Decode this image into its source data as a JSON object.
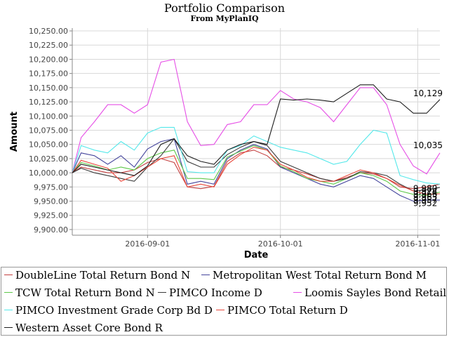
{
  "chart_data": {
    "type": "line",
    "title": "Portfolio Comparison",
    "subtitle": "From MyPlanIQ",
    "xlabel": "Date",
    "ylabel": "Amount",
    "ylim": [
      9890,
      10255
    ],
    "y_ticks": [
      "9,900.00",
      "9,925.00",
      "9,950.00",
      "9,975.00",
      "10,000.00",
      "10,025.00",
      "10,050.00",
      "10,075.00",
      "10,100.00",
      "10,125.00",
      "10,150.00",
      "10,175.00",
      "10,200.00",
      "10,225.00",
      "10,250.00"
    ],
    "y_tick_values": [
      9900,
      9925,
      9950,
      9975,
      10000,
      10025,
      10050,
      10075,
      10100,
      10125,
      10150,
      10175,
      10200,
      10225,
      10250
    ],
    "x_ticks": [
      "2016-09-01",
      "2016-10-01",
      "2016-11-01"
    ],
    "x_tick_positions": [
      17,
      47,
      78
    ],
    "x_range": [
      0,
      83
    ],
    "grid": true,
    "legend_position": "bottom",
    "end_labels": [
      {
        "text": "10,129",
        "value": 10129
      },
      {
        "text": "10,035",
        "value": 10035
      },
      {
        "text": "9,980",
        "value": 9980
      },
      {
        "text": "9,974",
        "value": 9974
      },
      {
        "text": "9,966",
        "value": 9966
      },
      {
        "text": "9,963",
        "value": 9963
      },
      {
        "text": "9,957",
        "value": 9957
      },
      {
        "text": "9,952",
        "value": 9952
      }
    ],
    "series": [
      {
        "name": "DoubleLine Total Return Bond N",
        "color": "#c33f3f",
        "x": [
          0,
          2,
          5,
          8,
          11,
          14,
          17,
          20,
          23,
          26,
          29,
          32,
          35,
          38,
          41,
          44,
          47,
          50,
          53,
          56,
          59,
          62,
          65,
          68,
          71,
          74,
          77,
          80,
          83
        ],
        "y": [
          10000,
          10010,
          10005,
          10000,
          10000,
          10005,
          10018,
          10025,
          10018,
          9975,
          9972,
          9976,
          10020,
          10035,
          10040,
          10030,
          10010,
          10005,
          9998,
          9990,
          9985,
          9992,
          10000,
          9998,
          9990,
          9975,
          9972,
          9975,
          9980
        ]
      },
      {
        "name": "Metropolitan West Total Return Bond M",
        "color": "#44449c",
        "x": [
          0,
          2,
          5,
          8,
          11,
          14,
          17,
          20,
          23,
          26,
          29,
          32,
          35,
          38,
          41,
          44,
          47,
          50,
          53,
          56,
          59,
          62,
          65,
          68,
          71,
          74,
          77,
          80,
          83
        ],
        "y": [
          10000,
          10035,
          10030,
          10015,
          10030,
          10010,
          10042,
          10055,
          10060,
          9980,
          9985,
          9980,
          10025,
          10040,
          10050,
          10042,
          10010,
          10000,
          9990,
          9980,
          9975,
          9985,
          9995,
          9990,
          9975,
          9960,
          9950,
          9952,
          9952
        ]
      },
      {
        "name": "TCW Total Return Bond N",
        "color": "#5ec94a",
        "x": [
          0,
          2,
          5,
          8,
          11,
          14,
          17,
          20,
          23,
          26,
          29,
          32,
          35,
          38,
          41,
          44,
          47,
          50,
          53,
          56,
          59,
          62,
          65,
          68,
          71,
          74,
          77,
          80,
          83
        ],
        "y": [
          10000,
          10018,
          10012,
          10005,
          10010,
          10005,
          10025,
          10035,
          10040,
          9990,
          9990,
          9988,
          10028,
          10038,
          10048,
          10040,
          10012,
          10002,
          9990,
          9985,
          9980,
          9990,
          10000,
          9995,
          9985,
          9968,
          9962,
          9960,
          9966
        ]
      },
      {
        "name": "PIMCO Income D",
        "color": "#3a3a3a",
        "x": [
          0,
          2,
          5,
          8,
          11,
          14,
          17,
          20,
          23,
          26,
          29,
          32,
          35,
          38,
          41,
          44,
          47,
          50,
          53,
          56,
          59,
          62,
          65,
          68,
          71,
          74,
          77,
          80,
          83
        ],
        "y": [
          10000,
          10008,
          10000,
          9995,
          9990,
          9985,
          10010,
          10030,
          10060,
          10020,
          10010,
          10010,
          10032,
          10045,
          10055,
          10048,
          10020,
          10010,
          10000,
          9990,
          9985,
          9990,
          10002,
          10000,
          9995,
          9980,
          9968,
          9970,
          9974
        ]
      },
      {
        "name": "Loomis Sayles Bond Retail",
        "color": "#e64fe6",
        "x": [
          0,
          2,
          5,
          8,
          11,
          14,
          17,
          20,
          23,
          26,
          29,
          32,
          35,
          38,
          41,
          44,
          47,
          50,
          53,
          56,
          59,
          62,
          65,
          68,
          71,
          74,
          77,
          80,
          83
        ],
        "y": [
          10000,
          10062,
          10090,
          10120,
          10120,
          10105,
          10120,
          10195,
          10200,
          10090,
          10048,
          10050,
          10085,
          10090,
          10120,
          10120,
          10145,
          10130,
          10125,
          10115,
          10090,
          10120,
          10150,
          10150,
          10120,
          10050,
          10012,
          9998,
          10035
        ]
      },
      {
        "name": "PIMCO Investment Grade Corp Bd D",
        "color": "#54e8ea",
        "x": [
          0,
          2,
          5,
          8,
          11,
          14,
          17,
          20,
          23,
          26,
          29,
          32,
          35,
          38,
          41,
          44,
          47,
          50,
          53,
          56,
          59,
          62,
          65,
          68,
          71,
          74,
          77,
          80,
          83
        ],
        "y": [
          10000,
          10048,
          10040,
          10035,
          10055,
          10040,
          10070,
          10080,
          10080,
          10002,
          10000,
          10000,
          10040,
          10048,
          10065,
          10055,
          10045,
          10040,
          10035,
          10025,
          10015,
          10020,
          10050,
          10075,
          10070,
          9995,
          9988,
          9982,
          9980
        ]
      },
      {
        "name": "PIMCO Total Return D",
        "color": "#e8473a",
        "x": [
          0,
          2,
          5,
          8,
          11,
          14,
          17,
          20,
          23,
          26,
          29,
          32,
          35,
          38,
          41,
          44,
          47,
          50,
          53,
          56,
          59,
          62,
          65,
          68,
          71,
          74,
          77,
          80,
          83
        ],
        "y": [
          10000,
          10022,
          10015,
          10008,
          9985,
          9995,
          10010,
          10025,
          10030,
          9975,
          9980,
          9975,
          10015,
          10032,
          10045,
          10040,
          10015,
          10005,
          9992,
          9985,
          9985,
          9995,
          10005,
          10000,
          9990,
          9978,
          9968,
          9962,
          9963
        ]
      },
      {
        "name": "Western Asset Core Bond R",
        "color": "#1e1e1e",
        "x": [
          0,
          2,
          5,
          8,
          11,
          14,
          17,
          20,
          23,
          26,
          29,
          32,
          35,
          38,
          41,
          44,
          47,
          50,
          53,
          56,
          59,
          62,
          65,
          68,
          71,
          74,
          77,
          80,
          83
        ],
        "y": [
          10000,
          10015,
          10010,
          10005,
          10000,
          9995,
          10012,
          10050,
          10060,
          10030,
          10020,
          10015,
          10040,
          10050,
          10055,
          10050,
          10130,
          10128,
          10130,
          10128,
          10125,
          10140,
          10155,
          10155,
          10130,
          10125,
          10105,
          10105,
          10129
        ]
      }
    ]
  }
}
